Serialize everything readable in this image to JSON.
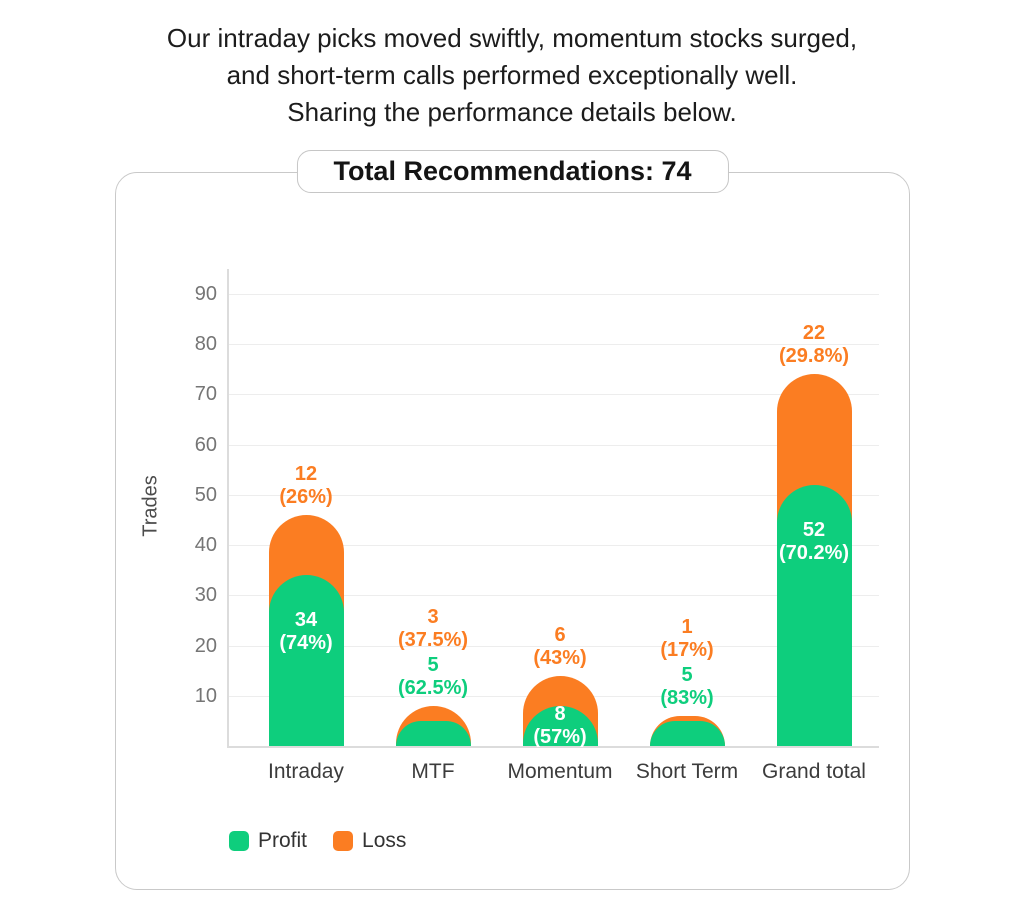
{
  "header": {
    "line1": "Our intraday picks moved swiftly, momentum stocks surged,",
    "line2": "and short-term calls performed exceptionally well.",
    "line3": "Sharing the performance details below."
  },
  "chart_data": {
    "type": "bar",
    "stacked": true,
    "title": "Total Recommendations: 74",
    "total_recommendations": 74,
    "ylabel": "Trades",
    "xlabel": "",
    "ylim": [
      0,
      95
    ],
    "yticks": [
      10,
      20,
      30,
      40,
      50,
      60,
      70,
      80,
      90
    ],
    "grid": true,
    "legend_position": "bottom-left",
    "categories": [
      "Intraday",
      "MTF",
      "Momentum",
      "Short Term",
      "Grand total"
    ],
    "series": [
      {
        "name": "Profit",
        "color": "#0ECE7D",
        "values": [
          34,
          5,
          8,
          5,
          52
        ],
        "percent_labels": [
          "(74%)",
          "(62.5%)",
          "(57%)",
          "(83%)",
          "(70.2%)"
        ]
      },
      {
        "name": "Loss",
        "color": "#FB7D22",
        "values": [
          12,
          3,
          6,
          1,
          22
        ],
        "percent_labels": [
          "(26%)",
          "(37.5%)",
          "(43%)",
          "(17%)",
          "(29.8%)"
        ]
      }
    ],
    "totals": [
      46,
      8,
      14,
      6,
      74
    ]
  }
}
